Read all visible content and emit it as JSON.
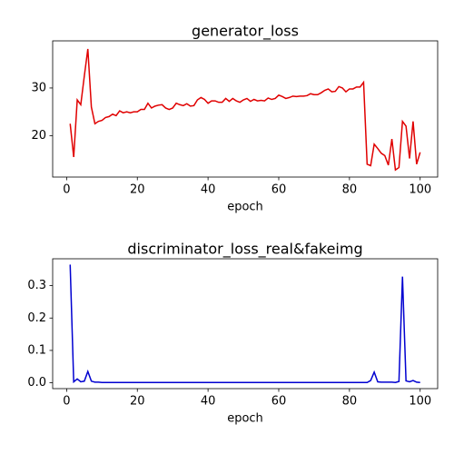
{
  "chart_data": [
    {
      "type": "line",
      "title": "generator_loss",
      "xlabel": "epoch",
      "x": [
        1,
        2,
        3,
        4,
        5,
        6,
        7,
        8,
        9,
        10,
        11,
        12,
        13,
        14,
        15,
        16,
        17,
        18,
        19,
        20,
        21,
        22,
        23,
        24,
        25,
        26,
        27,
        28,
        29,
        30,
        31,
        32,
        33,
        34,
        35,
        36,
        37,
        38,
        39,
        40,
        41,
        42,
        43,
        44,
        45,
        46,
        47,
        48,
        49,
        50,
        51,
        52,
        53,
        54,
        55,
        56,
        57,
        58,
        59,
        60,
        61,
        62,
        63,
        64,
        65,
        66,
        67,
        68,
        69,
        70,
        71,
        72,
        73,
        74,
        75,
        76,
        77,
        78,
        79,
        80,
        81,
        82,
        83,
        84,
        85,
        86,
        87,
        88,
        89,
        90,
        91,
        92,
        93,
        94,
        95,
        96,
        97,
        98,
        99,
        100
      ],
      "series": [
        {
          "color": "#e00000",
          "values": [
            22.5,
            15.5,
            27.5,
            26.5,
            32.5,
            38.2,
            26,
            22.5,
            23,
            23.2,
            23.8,
            24,
            24.5,
            24.2,
            25.2,
            24.8,
            25,
            24.8,
            25,
            25,
            25.5,
            25.5,
            26.8,
            25.8,
            26.2,
            26.4,
            26.5,
            25.8,
            25.5,
            25.8,
            26.8,
            26.5,
            26.3,
            26.7,
            26.2,
            26.3,
            27.5,
            28,
            27.6,
            26.8,
            27.3,
            27.3,
            27,
            27,
            27.8,
            27.2,
            27.8,
            27.3,
            27,
            27.5,
            27.8,
            27.2,
            27.6,
            27.3,
            27.4,
            27.3,
            27.9,
            27.6,
            27.8,
            28.5,
            28.2,
            27.8,
            28,
            28.3,
            28.2,
            28.3,
            28.3,
            28.4,
            28.8,
            28.6,
            28.6,
            29,
            29.5,
            29.8,
            29.2,
            29.3,
            30.3,
            30,
            29.2,
            29.8,
            29.8,
            30.2,
            30.2,
            31.2,
            14,
            13.7,
            18.2,
            17.3,
            16.3,
            15.8,
            13.8,
            19.3,
            12.8,
            13.3,
            23,
            22,
            15.2,
            23,
            14,
            16.5
          ]
        }
      ],
      "xlim": [
        -3.95,
        104.95
      ],
      "xticks": [
        0,
        20,
        40,
        60,
        80,
        100
      ],
      "ylim": [
        11.3,
        39.9
      ],
      "yticks": [
        20,
        30
      ]
    },
    {
      "type": "line",
      "title": "discriminator_loss_real&fakeimg",
      "xlabel": "epoch",
      "x": [
        1,
        2,
        3,
        4,
        5,
        6,
        7,
        8,
        9,
        10,
        11,
        12,
        13,
        14,
        15,
        16,
        17,
        18,
        19,
        20,
        21,
        22,
        23,
        24,
        25,
        26,
        27,
        28,
        29,
        30,
        31,
        32,
        33,
        34,
        35,
        36,
        37,
        38,
        39,
        40,
        41,
        42,
        43,
        44,
        45,
        46,
        47,
        48,
        49,
        50,
        51,
        52,
        53,
        54,
        55,
        56,
        57,
        58,
        59,
        60,
        61,
        62,
        63,
        64,
        65,
        66,
        67,
        68,
        69,
        70,
        71,
        72,
        73,
        74,
        75,
        76,
        77,
        78,
        79,
        80,
        81,
        82,
        83,
        84,
        85,
        86,
        87,
        88,
        89,
        90,
        91,
        92,
        93,
        94,
        95,
        96,
        97,
        98,
        99,
        100
      ],
      "series": [
        {
          "color": "#0000d0",
          "values": [
            0.365,
            0.003,
            0.012,
            0.003,
            0.005,
            0.035,
            0.005,
            0.002,
            0.002,
            0.001,
            0.001,
            0.001,
            0.001,
            0.001,
            0.001,
            0.001,
            0.001,
            0.001,
            0.001,
            0.001,
            0.001,
            0.001,
            0.001,
            0.001,
            0.001,
            0.001,
            0.001,
            0.001,
            0.001,
            0.001,
            0.001,
            0.001,
            0.001,
            0.001,
            0.001,
            0.001,
            0.001,
            0.001,
            0.001,
            0.001,
            0.001,
            0.001,
            0.001,
            0.001,
            0.001,
            0.001,
            0.001,
            0.001,
            0.001,
            0.001,
            0.001,
            0.001,
            0.001,
            0.001,
            0.001,
            0.001,
            0.001,
            0.001,
            0.001,
            0.001,
            0.001,
            0.001,
            0.001,
            0.001,
            0.001,
            0.001,
            0.001,
            0.001,
            0.001,
            0.001,
            0.001,
            0.001,
            0.001,
            0.001,
            0.001,
            0.001,
            0.001,
            0.001,
            0.001,
            0.001,
            0.001,
            0.001,
            0.001,
            0.001,
            0.001,
            0.007,
            0.033,
            0.003,
            0.002,
            0.002,
            0.002,
            0.002,
            0.001,
            0.004,
            0.328,
            0.006,
            0.003,
            0.007,
            0.002,
            0.001
          ]
        }
      ],
      "xlim": [
        -3.95,
        104.95
      ],
      "xticks": [
        0,
        20,
        40,
        60,
        80,
        100
      ],
      "ylim": [
        -0.018,
        0.383
      ],
      "yticks": [
        {
          "value": 0,
          "label": "0.0"
        },
        0.1,
        0.2,
        0.3
      ]
    }
  ]
}
